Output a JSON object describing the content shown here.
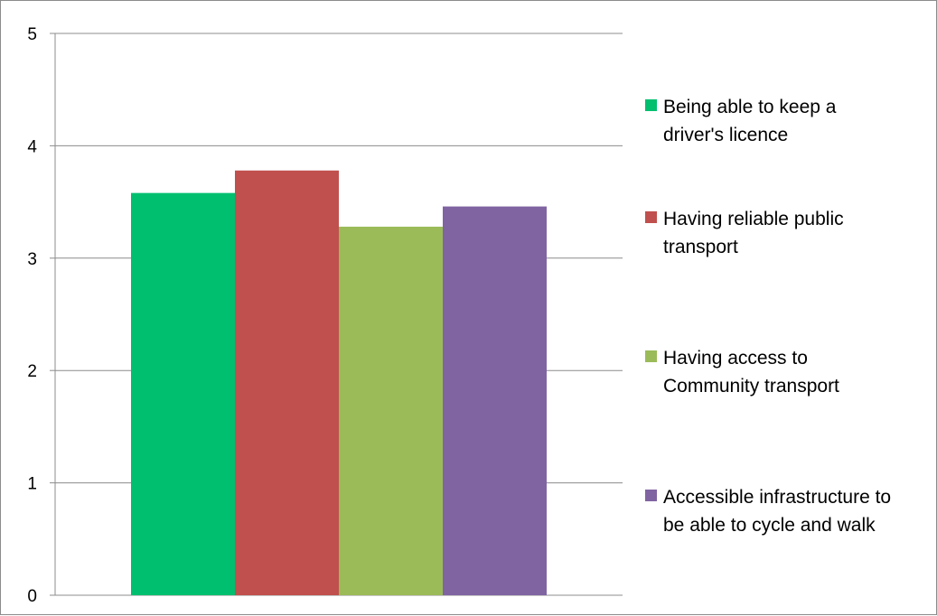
{
  "chart_data": {
    "type": "bar",
    "categories": [
      ""
    ],
    "series": [
      {
        "name": "Being able to keep a driver's licence",
        "values": [
          3.58
        ],
        "color": "#00bf6f"
      },
      {
        "name": "Having reliable public transport",
        "values": [
          3.78
        ],
        "color": "#c0504d"
      },
      {
        "name": "Having access to Community transport",
        "values": [
          3.28
        ],
        "color": "#9bbb59"
      },
      {
        "name": "Accessible infrastructure to be able to cycle and walk",
        "values": [
          3.46
        ],
        "color": "#8064a2"
      }
    ],
    "legend": {
      "placement": "right",
      "entries": [
        {
          "lines": [
            "Being able to keep a",
            "driver's licence"
          ]
        },
        {
          "lines": [
            "Having reliable public",
            "transport"
          ]
        },
        {
          "lines": [
            "Having access to",
            "Community transport"
          ]
        },
        {
          "lines": [
            "Accessible infrastructure to",
            "be able to cycle and walk"
          ]
        }
      ]
    },
    "title": "",
    "xlabel": "",
    "ylabel": "",
    "ylim": [
      0,
      5
    ],
    "yticks": [
      "0",
      "1",
      "2",
      "3",
      "4",
      "5"
    ],
    "grid": true,
    "gridColor": "#8c8c8c"
  }
}
